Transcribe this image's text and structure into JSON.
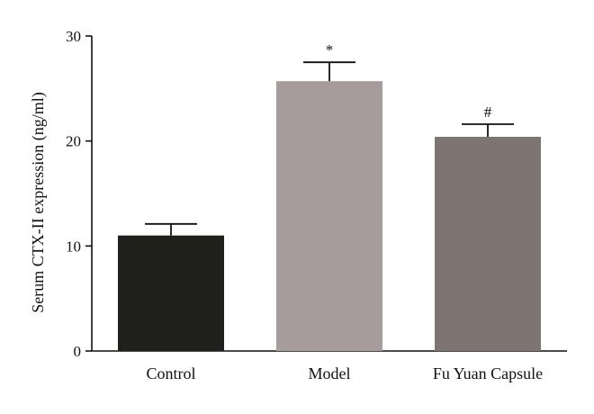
{
  "chart_data": {
    "type": "bar",
    "categories": [
      "Control",
      "Model",
      "Fu Yuan Capsule"
    ],
    "values": [
      11.0,
      25.7,
      20.4
    ],
    "error_upper": [
      12.1,
      27.5,
      21.6
    ],
    "annotations": [
      "",
      "*",
      "#"
    ],
    "colors": [
      "#1f1f1c",
      "#a59c9b",
      "#7e7573"
    ],
    "title": "",
    "xlabel": "",
    "ylabel": "Serum CTX-II expression (ng/ml)",
    "ylim": [
      0,
      30
    ],
    "yticks": [
      0,
      10,
      20,
      30
    ],
    "grid": false
  }
}
